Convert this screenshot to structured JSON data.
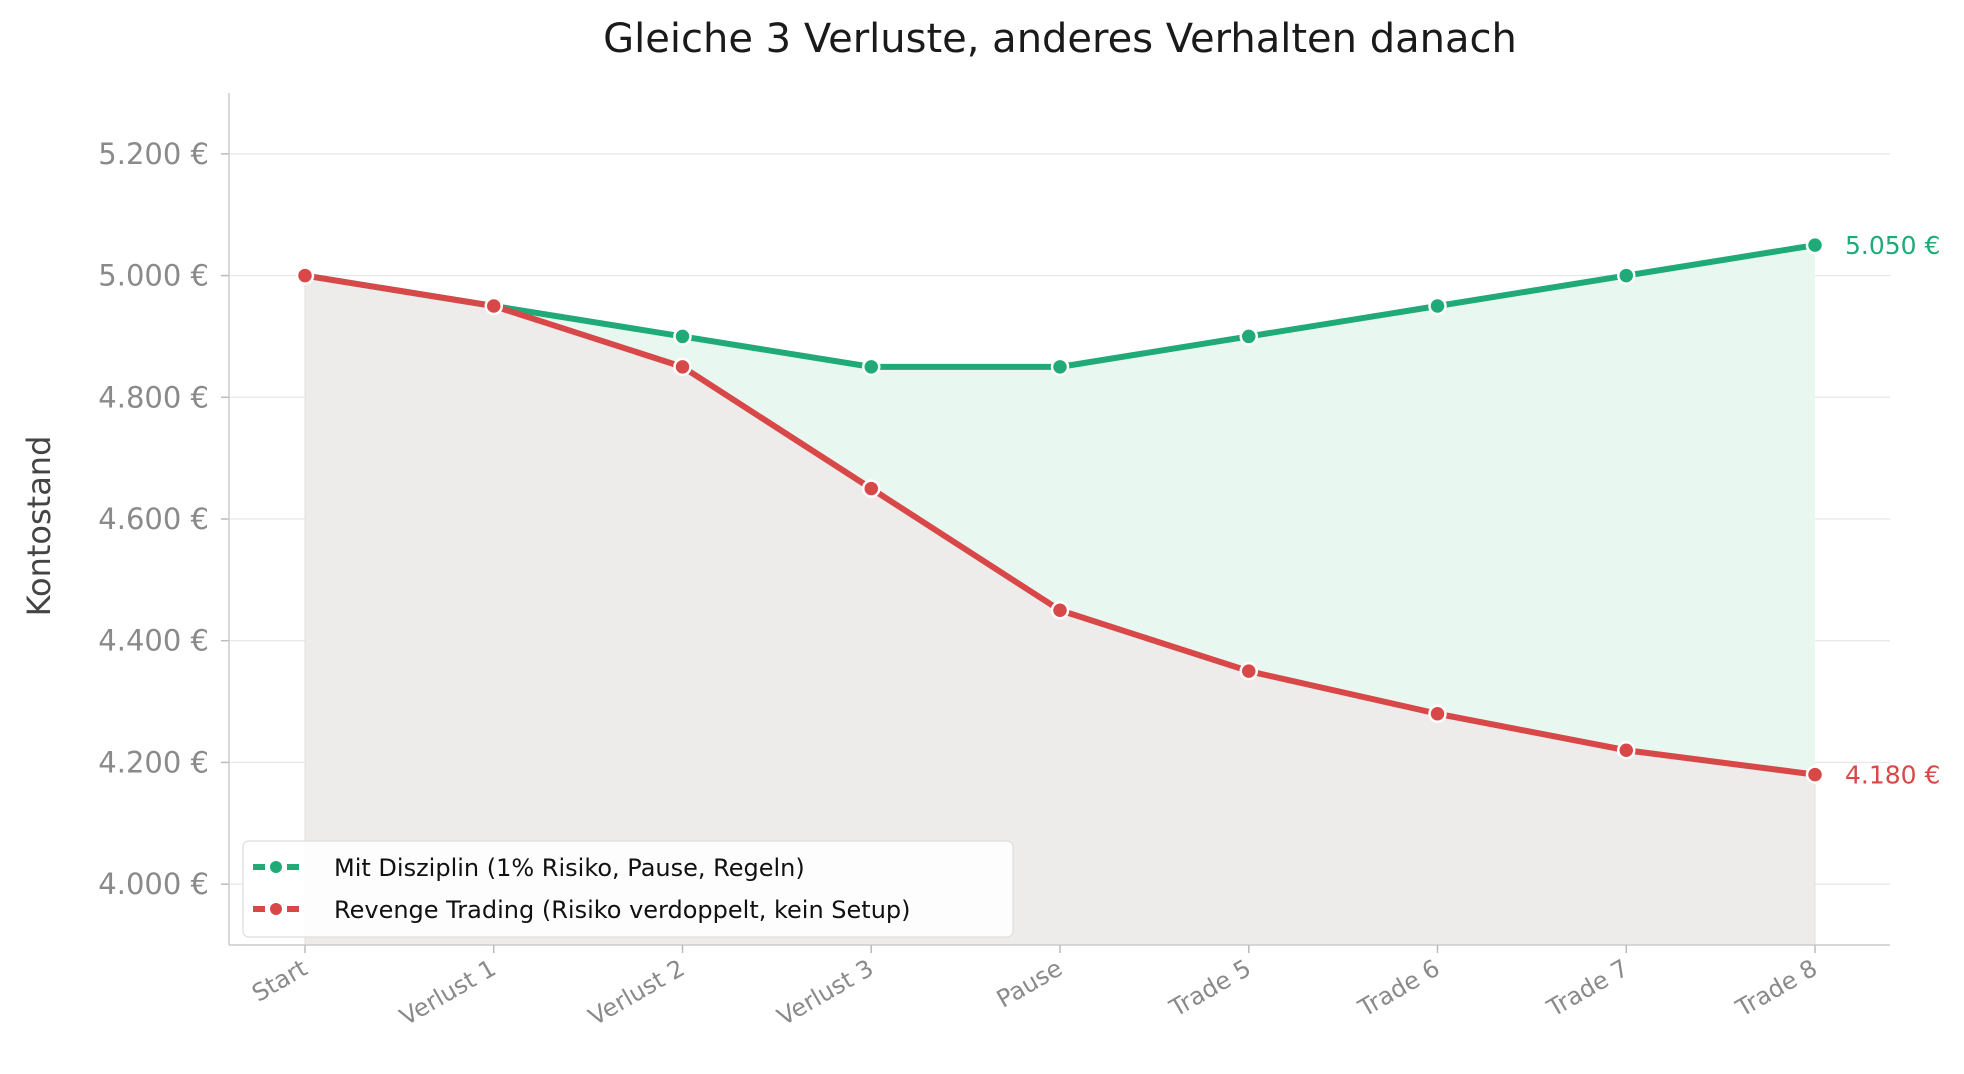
{
  "chart_data": {
    "type": "line",
    "title": "Gleiche 3 Verluste, anderes Verhalten danach",
    "xlabel": "",
    "ylabel": "Kontostand",
    "categories": [
      "Start",
      "Verlust 1",
      "Verlust 2",
      "Verlust 3",
      "Pause",
      "Trade 5",
      "Trade 6",
      "Trade 7",
      "Trade 8"
    ],
    "ylim": [
      3900,
      5300
    ],
    "yticks": [
      {
        "value": 4000,
        "label": "4.000 €"
      },
      {
        "value": 4200,
        "label": "4.200 €"
      },
      {
        "value": 4400,
        "label": "4.400 €"
      },
      {
        "value": 4600,
        "label": "4.600 €"
      },
      {
        "value": 4800,
        "label": "4.800 €"
      },
      {
        "value": 5000,
        "label": "5.000 €"
      },
      {
        "value": 5200,
        "label": "5.200 €"
      }
    ],
    "grid": true,
    "legend_position": "lower-left",
    "series": [
      {
        "name": "Mit Disziplin (1% Risiko, Pause, Regeln)",
        "color": "#1faa78",
        "values": [
          5000,
          4950,
          4900,
          4850,
          4850,
          4900,
          4950,
          5000,
          5050
        ],
        "end_label": "5.050 €"
      },
      {
        "name": "Revenge Trading (Risiko verdoppelt, kein Setup)",
        "color": "#d94848",
        "values": [
          5000,
          4950,
          4850,
          4650,
          4450,
          4350,
          4280,
          4220,
          4180
        ],
        "end_label": "4.180 €"
      }
    ],
    "fill_between_color": "#e8f7f0",
    "fill_below_color": "#eeecea"
  }
}
